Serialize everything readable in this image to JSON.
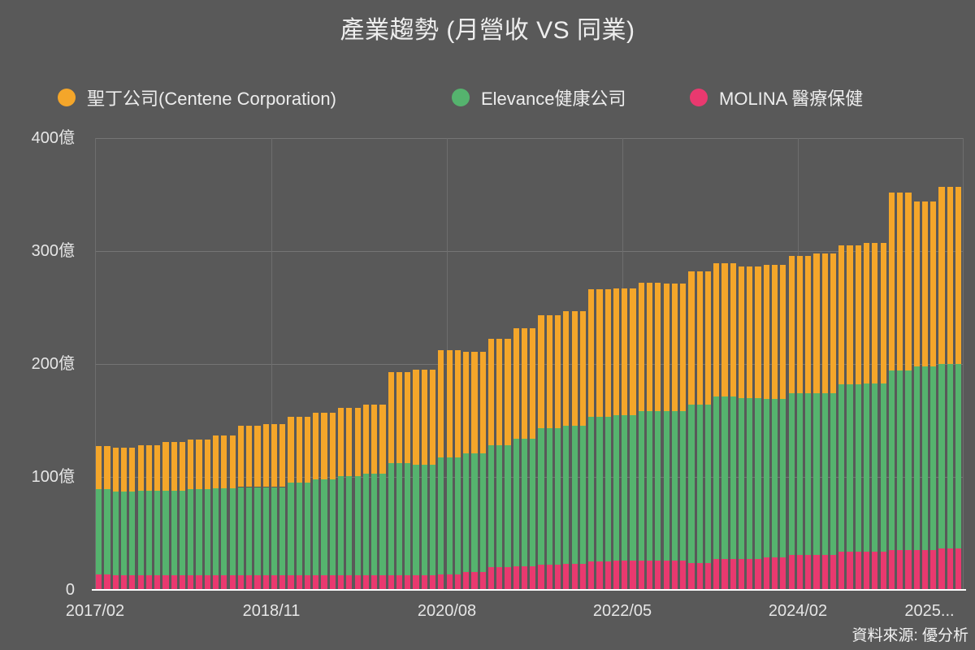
{
  "title": "產業趨勢 (月營收 VS 同業)",
  "source": "資料來源: 優分析",
  "chart_data": {
    "type": "bar",
    "stacked": true,
    "unit": "億",
    "ylim": [
      0,
      400
    ],
    "grid": true,
    "legend_position": "top",
    "y_tick_labels": [
      "400億",
      "300億",
      "200億",
      "100億",
      "0"
    ],
    "x_tick_labels": [
      "2017/02",
      "2018/11",
      "2020/08",
      "2022/05",
      "2024/02",
      "2025..."
    ],
    "series": [
      {
        "name": "聖丁公司(Centene Corporation)",
        "color": "#F4A62A",
        "values": [
          38,
          38,
          39,
          39,
          39,
          40,
          40,
          40,
          43,
          43,
          43,
          44,
          44,
          44,
          47,
          47,
          47,
          54,
          54,
          54,
          56,
          56,
          56,
          58,
          58,
          58,
          59,
          59,
          59,
          60,
          60,
          60,
          61,
          61,
          61,
          81,
          81,
          81,
          84,
          84,
          84,
          95,
          95,
          95,
          90,
          90,
          90,
          94,
          94,
          94,
          98,
          98,
          98,
          100,
          100,
          100,
          102,
          102,
          102,
          113,
          113,
          113,
          112,
          112,
          112,
          114,
          114,
          114,
          113,
          113,
          113,
          118,
          118,
          118,
          118,
          118,
          118,
          116,
          116,
          116,
          119,
          119,
          119,
          122,
          122,
          122,
          124,
          124,
          124,
          123,
          123,
          123,
          124,
          124,
          124,
          158,
          158,
          158,
          146,
          146,
          146,
          157,
          157,
          157
        ]
      },
      {
        "name": "Elevance健康公司",
        "color": "#55B36E",
        "values": [
          75,
          75,
          74,
          74,
          74,
          75,
          75,
          75,
          75,
          75,
          75,
          76,
          76,
          76,
          77,
          77,
          77,
          78,
          78,
          78,
          78,
          78,
          78,
          82,
          82,
          82,
          85,
          85,
          85,
          88,
          88,
          88,
          90,
          90,
          90,
          99,
          99,
          99,
          98,
          98,
          98,
          103,
          103,
          103,
          105,
          105,
          105,
          108,
          108,
          108,
          113,
          113,
          113,
          121,
          121,
          121,
          122,
          122,
          122,
          128,
          128,
          128,
          129,
          129,
          129,
          132,
          132,
          132,
          132,
          132,
          132,
          140,
          140,
          140,
          144,
          144,
          144,
          143,
          143,
          143,
          140,
          140,
          140,
          143,
          143,
          143,
          143,
          143,
          143,
          148,
          148,
          148,
          149,
          149,
          149,
          159,
          159,
          159,
          163,
          163,
          163,
          163,
          163,
          163
        ]
      },
      {
        "name": "MOLINA 醫療保健",
        "color": "#E9396F",
        "values": [
          14,
          14,
          13,
          13,
          13,
          13,
          13,
          13,
          13,
          13,
          13,
          13,
          13,
          13,
          13,
          13,
          13,
          13,
          13,
          13,
          13,
          13,
          13,
          13,
          13,
          13,
          13,
          13,
          13,
          13,
          13,
          13,
          13,
          13,
          13,
          13,
          13,
          13,
          13,
          13,
          13,
          14,
          14,
          14,
          16,
          16,
          16,
          20,
          20,
          20,
          21,
          21,
          21,
          22,
          22,
          22,
          23,
          23,
          23,
          25,
          25,
          25,
          26,
          26,
          26,
          26,
          26,
          26,
          26,
          26,
          26,
          24,
          24,
          24,
          27,
          27,
          27,
          27,
          27,
          27,
          29,
          29,
          29,
          31,
          31,
          31,
          31,
          31,
          31,
          34,
          34,
          34,
          34,
          34,
          34,
          35,
          35,
          35,
          35,
          35,
          35,
          37,
          37,
          37
        ]
      }
    ]
  }
}
